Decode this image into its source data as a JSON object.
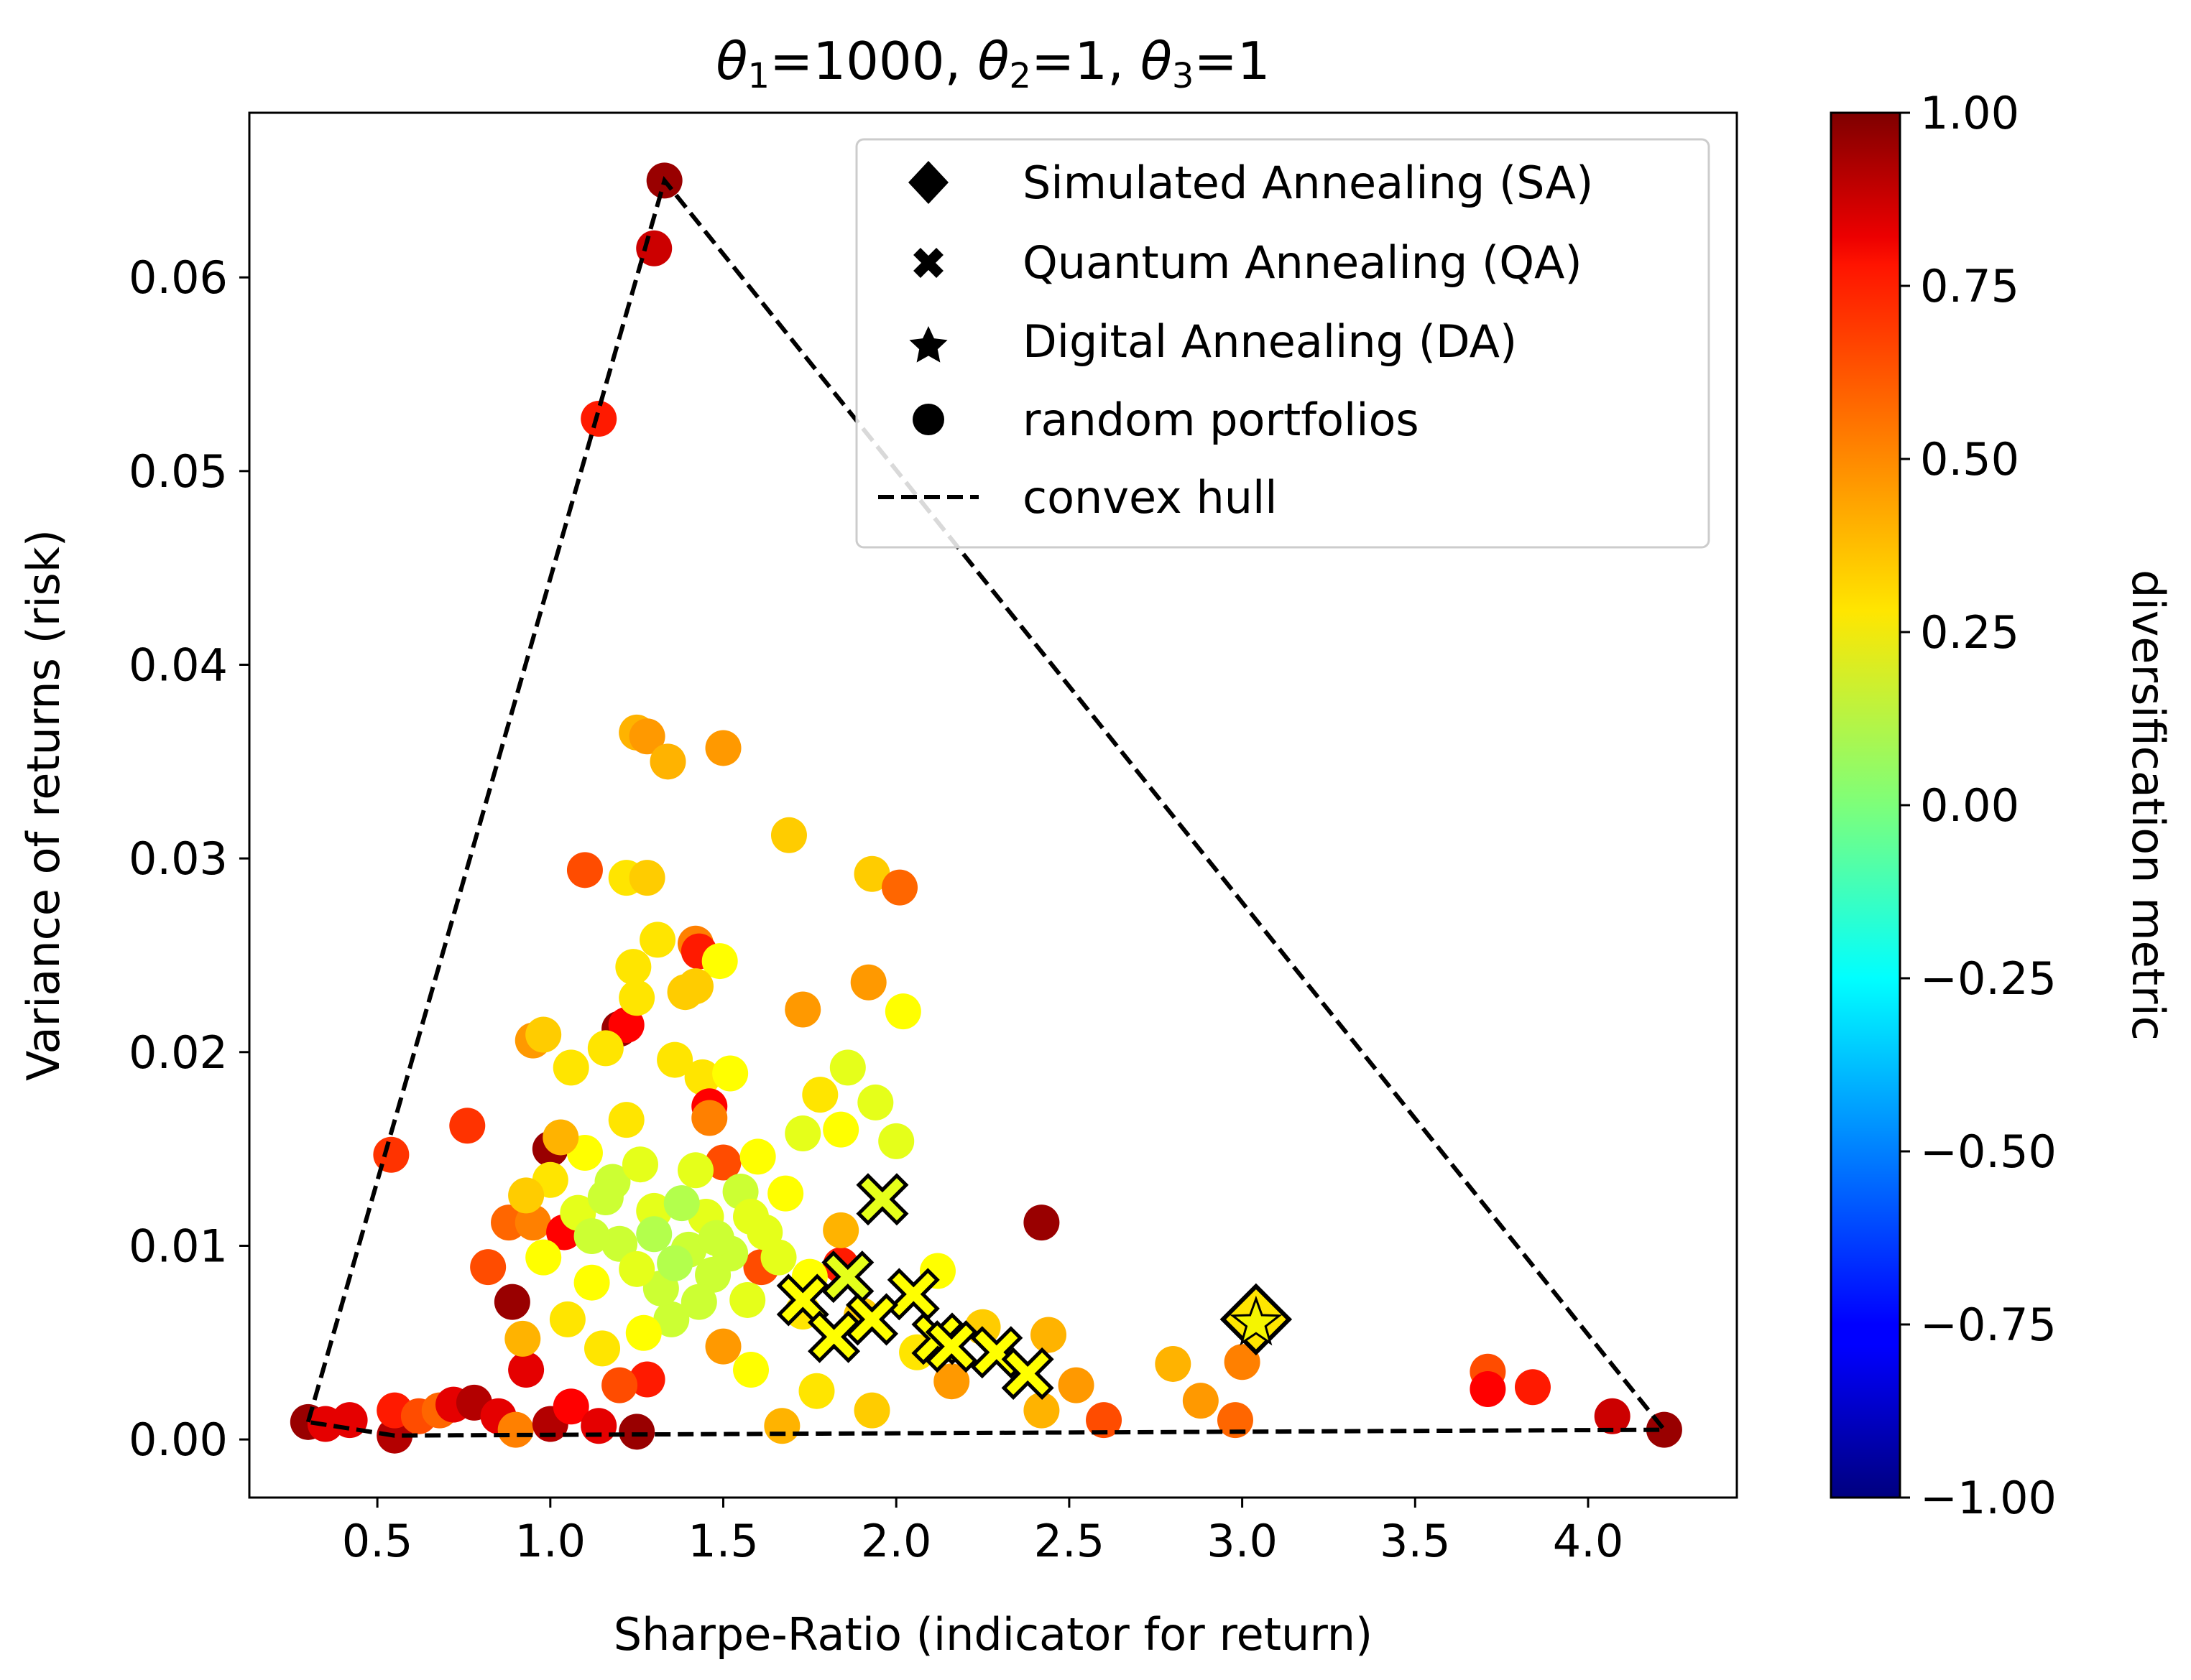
{
  "chart_data": {
    "type": "scatter",
    "title": "θ1=1000, θ2=1, θ3=1",
    "title_parts": {
      "t1_base": "θ",
      "t1_sub": "1",
      "t1_val": "=1000, ",
      "t2_base": "θ",
      "t2_sub": "2",
      "t2_val": "=1, ",
      "t3_base": "θ",
      "t3_sub": "3",
      "t3_val": "=1"
    },
    "xlabel": "Sharpe-Ratio (indicator for return)",
    "ylabel": "Variance of returns (risk)",
    "xlim": [
      0.13,
      4.43
    ],
    "ylim": [
      -0.003,
      0.0685
    ],
    "x_ticks": [
      "0.5",
      "1.0",
      "1.5",
      "2.0",
      "2.5",
      "3.0",
      "3.5",
      "4.0"
    ],
    "x_tick_values": [
      0.5,
      1.0,
      1.5,
      2.0,
      2.5,
      3.0,
      3.5,
      4.0
    ],
    "y_ticks": [
      "0.00",
      "0.01",
      "0.02",
      "0.03",
      "0.04",
      "0.05",
      "0.06"
    ],
    "y_tick_values": [
      0.0,
      0.01,
      0.02,
      0.03,
      0.04,
      0.05,
      0.06
    ],
    "colorbar": {
      "label": "diversification metric",
      "range": [
        -1.0,
        1.0
      ],
      "colormap": "jet",
      "ticks": [
        "1.00",
        "0.75",
        "0.50",
        "0.25",
        "0.00",
        "−0.25",
        "−0.50",
        "−0.75",
        "−1.00"
      ],
      "tick_values": [
        1.0,
        0.75,
        0.5,
        0.25,
        0.0,
        -0.25,
        -0.5,
        -0.75,
        -1.0
      ]
    },
    "legend": {
      "placement": "top-right",
      "entries": [
        {
          "label": "Simulated Annealing (SA)",
          "marker": "diamond"
        },
        {
          "label": "Quantum Annealing (QA)",
          "marker": "x"
        },
        {
          "label": "Digital Annealing (DA)",
          "marker": "star"
        },
        {
          "label": "random portfolios",
          "marker": "circle"
        },
        {
          "label": "convex hull",
          "marker": "dashed-line"
        }
      ]
    },
    "series": [
      {
        "name": "random portfolios",
        "marker": "circle",
        "points": [
          [
            1.33,
            0.065,
            0.95
          ],
          [
            1.3,
            0.0615,
            0.85
          ],
          [
            1.14,
            0.0527,
            0.7
          ],
          [
            0.54,
            0.0147,
            0.65
          ],
          [
            0.76,
            0.0162,
            0.65
          ],
          [
            1.0,
            0.015,
            0.95
          ],
          [
            0.3,
            0.0009,
            0.95
          ],
          [
            0.35,
            0.0008,
            0.8
          ],
          [
            0.42,
            0.001,
            0.8
          ],
          [
            0.55,
            0.0002,
            0.9
          ],
          [
            0.55,
            0.0015,
            0.7
          ],
          [
            0.62,
            0.0012,
            0.6
          ],
          [
            0.68,
            0.0015,
            0.55
          ],
          [
            0.72,
            0.0018,
            0.8
          ],
          [
            0.78,
            0.0019,
            0.9
          ],
          [
            0.85,
            0.0012,
            0.8
          ],
          [
            0.9,
            0.0005,
            0.5
          ],
          [
            1.0,
            0.0008,
            0.9
          ],
          [
            1.06,
            0.0017,
            0.75
          ],
          [
            1.14,
            0.0007,
            0.8
          ],
          [
            1.25,
            0.0004,
            0.95
          ],
          [
            1.28,
            0.0031,
            0.7
          ],
          [
            1.2,
            0.0028,
            0.6
          ],
          [
            0.93,
            0.0036,
            0.8
          ],
          [
            0.89,
            0.0071,
            0.95
          ],
          [
            0.82,
            0.0089,
            0.6
          ],
          [
            0.88,
            0.0112,
            0.55
          ],
          [
            0.95,
            0.0112,
            0.5
          ],
          [
            1.04,
            0.0107,
            0.75
          ],
          [
            1.2,
            0.0212,
            0.95
          ],
          [
            1.22,
            0.0214,
            0.75
          ],
          [
            1.25,
            0.0365,
            0.4
          ],
          [
            1.28,
            0.0363,
            0.45
          ],
          [
            1.34,
            0.035,
            0.4
          ],
          [
            1.5,
            0.0357,
            0.45
          ],
          [
            1.69,
            0.0312,
            0.35
          ],
          [
            1.1,
            0.0294,
            0.6
          ],
          [
            1.22,
            0.029,
            0.3
          ],
          [
            1.28,
            0.029,
            0.35
          ],
          [
            1.93,
            0.0292,
            0.35
          ],
          [
            2.01,
            0.0285,
            0.55
          ],
          [
            1.31,
            0.0258,
            0.3
          ],
          [
            1.42,
            0.0256,
            0.5
          ],
          [
            1.43,
            0.0252,
            0.7
          ],
          [
            1.49,
            0.0247,
            0.25
          ],
          [
            1.24,
            0.0244,
            0.3
          ],
          [
            1.39,
            0.0231,
            0.35
          ],
          [
            1.25,
            0.0228,
            0.3
          ],
          [
            1.42,
            0.0234,
            0.35
          ],
          [
            1.92,
            0.0236,
            0.45
          ],
          [
            2.02,
            0.0221,
            0.25
          ],
          [
            1.73,
            0.0222,
            0.45
          ],
          [
            0.95,
            0.0206,
            0.45
          ],
          [
            0.98,
            0.0209,
            0.35
          ],
          [
            1.06,
            0.0192,
            0.3
          ],
          [
            1.16,
            0.0202,
            0.3
          ],
          [
            1.36,
            0.0196,
            0.3
          ],
          [
            1.44,
            0.0187,
            0.3
          ],
          [
            1.52,
            0.0189,
            0.25
          ],
          [
            1.86,
            0.0192,
            0.2
          ],
          [
            1.78,
            0.0178,
            0.3
          ],
          [
            1.94,
            0.0174,
            0.2
          ],
          [
            1.46,
            0.0172,
            0.75
          ],
          [
            1.46,
            0.0166,
            0.5
          ],
          [
            1.84,
            0.016,
            0.25
          ],
          [
            1.73,
            0.0158,
            0.2
          ],
          [
            2.0,
            0.0154,
            0.2
          ],
          [
            1.5,
            0.0143,
            0.6
          ],
          [
            2.12,
            0.0087,
            0.25
          ],
          [
            2.42,
            0.0112,
            0.95
          ],
          [
            1.84,
            0.009,
            0.7
          ],
          [
            1.84,
            0.0108,
            0.4
          ],
          [
            1.61,
            0.0089,
            0.6
          ],
          [
            2.44,
            0.0054,
            0.4
          ],
          [
            2.52,
            0.0028,
            0.45
          ],
          [
            2.6,
            0.001,
            0.6
          ],
          [
            2.8,
            0.0039,
            0.4
          ],
          [
            2.88,
            0.002,
            0.45
          ],
          [
            2.98,
            0.001,
            0.55
          ],
          [
            3.0,
            0.004,
            0.5
          ],
          [
            3.71,
            0.0035,
            0.6
          ],
          [
            3.71,
            0.0026,
            0.75
          ],
          [
            3.84,
            0.0027,
            0.7
          ],
          [
            4.07,
            0.0012,
            0.85
          ],
          [
            4.22,
            0.0005,
            0.95
          ],
          [
            2.42,
            0.0015,
            0.4
          ],
          [
            2.16,
            0.003,
            0.45
          ],
          [
            1.93,
            0.0015,
            0.35
          ],
          [
            1.67,
            0.0007,
            0.4
          ],
          [
            1.5,
            0.0048,
            0.45
          ],
          [
            2.06,
            0.0045,
            0.3
          ],
          [
            2.25,
            0.0058,
            0.35
          ],
          [
            1.77,
            0.0025,
            0.3
          ],
          [
            1.58,
            0.0036,
            0.25
          ],
          [
            1.35,
            0.0062,
            0.15
          ],
          [
            1.4,
            0.0098,
            0.15
          ],
          [
            1.3,
            0.0118,
            0.2
          ],
          [
            1.18,
            0.0133,
            0.15
          ],
          [
            1.26,
            0.0142,
            0.2
          ],
          [
            1.55,
            0.0128,
            0.15
          ],
          [
            1.62,
            0.0107,
            0.2
          ],
          [
            1.12,
            0.0081,
            0.25
          ],
          [
            1.05,
            0.0062,
            0.3
          ],
          [
            0.98,
            0.0094,
            0.25
          ],
          [
            1.32,
            0.0078,
            0.15
          ],
          [
            1.45,
            0.0115,
            0.2
          ],
          [
            1.68,
            0.0127,
            0.25
          ],
          [
            1.57,
            0.0072,
            0.2
          ],
          [
            1.2,
            0.0101,
            0.15
          ],
          [
            1.38,
            0.0122,
            0.1
          ],
          [
            1.08,
            0.0117,
            0.2
          ],
          [
            1.47,
            0.0085,
            0.15
          ],
          [
            1.73,
            0.0066,
            0.3
          ],
          [
            1.9,
            0.0064,
            0.35
          ],
          [
            1.15,
            0.0047,
            0.3
          ],
          [
            1.27,
            0.0055,
            0.25
          ],
          [
            0.92,
            0.0052,
            0.4
          ],
          [
            1.0,
            0.0134,
            0.3
          ],
          [
            1.1,
            0.0148,
            0.25
          ],
          [
            1.42,
            0.0139,
            0.2
          ],
          [
            1.6,
            0.0146,
            0.25
          ],
          [
            1.22,
            0.0165,
            0.3
          ],
          [
            1.03,
            0.0156,
            0.4
          ],
          [
            0.93,
            0.0126,
            0.35
          ],
          [
            1.16,
            0.0125,
            0.15
          ],
          [
            1.36,
            0.0091,
            0.1
          ],
          [
            1.52,
            0.0096,
            0.15
          ],
          [
            1.66,
            0.0094,
            0.2
          ],
          [
            1.75,
            0.0084,
            0.25
          ],
          [
            1.25,
            0.0088,
            0.2
          ],
          [
            1.43,
            0.0071,
            0.15
          ],
          [
            1.12,
            0.0105,
            0.15
          ],
          [
            1.3,
            0.0106,
            0.1
          ],
          [
            1.48,
            0.0104,
            0.15
          ],
          [
            1.58,
            0.0115,
            0.2
          ]
        ]
      },
      {
        "name": "Quantum Annealing (QA)",
        "marker": "x",
        "points": [
          [
            1.96,
            0.0124,
            0.2
          ],
          [
            1.73,
            0.0072,
            0.25
          ],
          [
            1.86,
            0.0084,
            0.2
          ],
          [
            2.05,
            0.0075,
            0.25
          ],
          [
            1.93,
            0.0062,
            0.25
          ],
          [
            1.82,
            0.0053,
            0.25
          ],
          [
            2.12,
            0.0052,
            0.25
          ],
          [
            2.16,
            0.0048,
            0.25
          ],
          [
            2.29,
            0.0045,
            0.25
          ],
          [
            2.38,
            0.0034,
            0.25
          ]
        ]
      },
      {
        "name": "Simulated Annealing (SA)",
        "marker": "diamond",
        "points": [
          [
            3.04,
            0.0062,
            0.3
          ]
        ]
      },
      {
        "name": "Digital Annealing (DA)",
        "marker": "star",
        "points": [
          [
            3.04,
            0.006,
            0.3
          ]
        ]
      },
      {
        "name": "convex hull",
        "marker": "dashed-line",
        "points": [
          [
            0.3,
            0.0009
          ],
          [
            1.33,
            0.065
          ],
          [
            4.22,
            0.0005
          ],
          [
            0.55,
            0.0002
          ],
          [
            0.3,
            0.0009
          ]
        ]
      }
    ]
  }
}
